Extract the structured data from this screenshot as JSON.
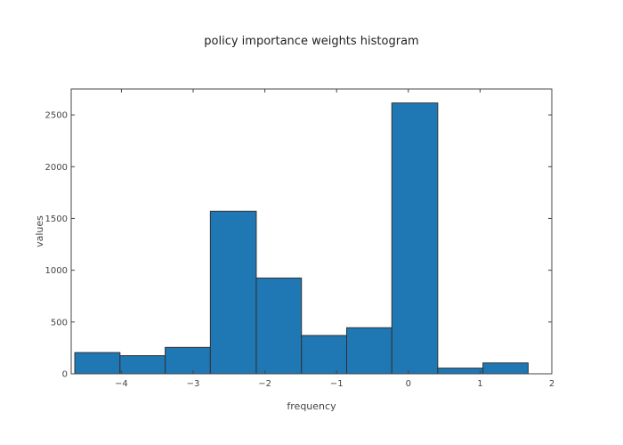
{
  "chart_data": {
    "type": "bar",
    "title": "policy importance weights histogram",
    "xlabel": "frequency",
    "ylabel": "values",
    "xlim": [
      -4.7,
      2.0
    ],
    "ylim": [
      0,
      2750
    ],
    "x_ticks": [
      -4,
      -3,
      -2,
      -1,
      0,
      1,
      2
    ],
    "x_tick_labels": [
      "−4",
      "−3",
      "−2",
      "−1",
      "0",
      "1",
      "2"
    ],
    "y_ticks": [
      0,
      500,
      1000,
      1500,
      2000,
      2500
    ],
    "y_tick_labels": [
      "0",
      "500",
      "1000",
      "1500",
      "2000",
      "2500"
    ],
    "bins": [
      {
        "x0": -4.65,
        "x1": -4.02,
        "value": 205
      },
      {
        "x0": -4.02,
        "x1": -3.39,
        "value": 175
      },
      {
        "x0": -3.39,
        "x1": -2.76,
        "value": 255
      },
      {
        "x0": -2.76,
        "x1": -2.12,
        "value": 1570
      },
      {
        "x0": -2.12,
        "x1": -1.49,
        "value": 925
      },
      {
        "x0": -1.49,
        "x1": -0.86,
        "value": 370
      },
      {
        "x0": -0.86,
        "x1": -0.23,
        "value": 445
      },
      {
        "x0": -0.23,
        "x1": 0.41,
        "value": 2615
      },
      {
        "x0": 0.41,
        "x1": 1.04,
        "value": 55
      },
      {
        "x0": 1.04,
        "x1": 1.67,
        "value": 105
      }
    ],
    "grid": false,
    "colors": {
      "bar_fill": "#1f77b4",
      "bar_edge": "#333333",
      "axis": "#444444"
    }
  }
}
